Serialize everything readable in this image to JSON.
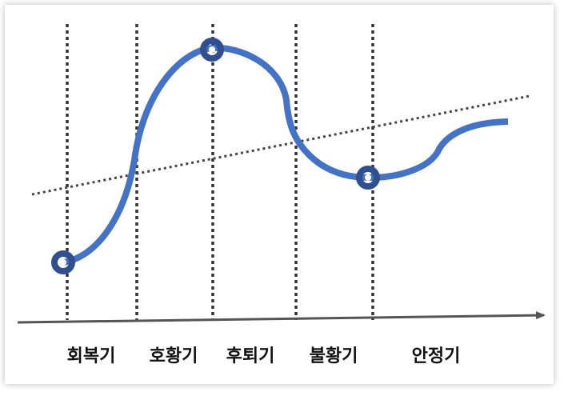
{
  "diagram": {
    "phases": [
      {
        "label": "회복기"
      },
      {
        "label": "호황기"
      },
      {
        "label": "후퇴기"
      },
      {
        "label": "불황기"
      },
      {
        "label": "안정기"
      }
    ],
    "colors": {
      "cycle_curve": "#4472c4",
      "marker_ring": "#2f4f8f",
      "marker_center": "#ffffff",
      "divider": "#333333",
      "trend_line": "#444444",
      "axis": "#555555"
    }
  }
}
